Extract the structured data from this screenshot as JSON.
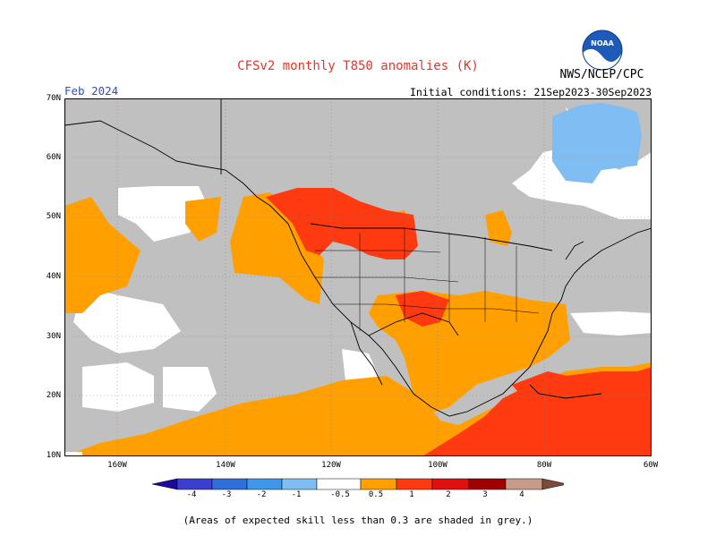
{
  "header": {
    "title": "CFSv2 monthly T850 anomalies (K)",
    "agency": "NWS/NCEP/CPC",
    "month": "Feb 2024",
    "initial_conditions": "Initial conditions: 21Sep2023-30Sep2023",
    "logo_text": "NOAA"
  },
  "axes": {
    "lat_labels": [
      "70N",
      "60N",
      "50N",
      "40N",
      "30N",
      "20N",
      "10N"
    ],
    "lon_labels": [
      "160W",
      "140W",
      "120W",
      "100W",
      "80W",
      "60W"
    ]
  },
  "colorbar": {
    "labels": [
      "-4",
      "-3",
      "-2",
      "-1",
      "-0.5",
      "0.5",
      "1",
      "2",
      "3",
      "4"
    ],
    "colors": [
      "#1a0a9e",
      "#3b3fd0",
      "#2f6fdc",
      "#3f97ea",
      "#7fbdf2",
      "#ffffff",
      "#ff9f00",
      "#ff3a10",
      "#e01010",
      "#a00000",
      "#c79a8a",
      "#7a4a3a"
    ]
  },
  "colors": {
    "grey_low_skill": "#c0c0c0",
    "orange": "#ffa000",
    "red_orange": "#ff3a10",
    "red": "#e01010",
    "light_blue": "#7fbdf2"
  },
  "footnote": "(Areas of expected skill less than 0.3 are shaded in grey.)"
}
